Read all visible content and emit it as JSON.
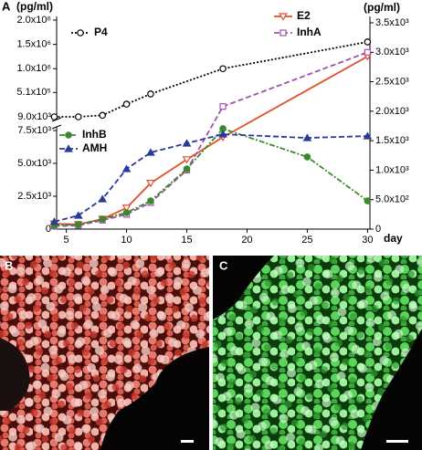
{
  "chart_data": {
    "type": "line",
    "panel_label": "A",
    "ylabel": "(pg/ml)",
    "y2label": "(pg/ml)",
    "xlabel": "day",
    "xlim": [
      4.2,
      30.2
    ],
    "xticks": [
      5,
      10,
      15,
      20,
      25,
      30
    ],
    "ylim": [
      0,
      7500
    ],
    "yticks": [
      0,
      {
        "value": 2500,
        "label": "2.5x10³"
      },
      {
        "value": 5000,
        "label": "5.0x10³"
      },
      {
        "value": 7500,
        "label": "7.5x10³"
      }
    ],
    "y_upper_lim": [
      9000,
      2000000
    ],
    "y_upper_ticks": [
      {
        "value": 9000,
        "label": "9.0x10³"
      },
      {
        "value": 510000,
        "label": "5.1x10⁵"
      },
      {
        "value": 1000000,
        "label": "1.0x10⁶"
      },
      {
        "value": 1500000,
        "label": "1.5x10⁶"
      },
      {
        "value": 2000000,
        "label": "2.0x10⁶"
      }
    ],
    "y2lim": [
      0,
      3500
    ],
    "y2ticks": [
      0,
      {
        "value": 500,
        "label": "5.0x10²"
      },
      {
        "value": 1000,
        "label": "1.0x10³"
      },
      {
        "value": 1500,
        "label": "1.5x10³"
      },
      {
        "value": 2000,
        "label": "2.0x10³"
      },
      {
        "value": 2500,
        "label": "2.5x10³"
      },
      {
        "value": 3000,
        "label": "3.0x10³"
      },
      {
        "value": 3500,
        "label": "3.5x10³"
      }
    ],
    "series": [
      {
        "name": "P4",
        "color": "#000000",
        "axis": "y_upper",
        "dash": "2,2",
        "marker": "circle",
        "marker_filled": false,
        "x": [
          4,
          6,
          8,
          10,
          12,
          18,
          30
        ],
        "values": [
          9000,
          9000,
          40000,
          270000,
          480000,
          1000000,
          1550000
        ]
      },
      {
        "name": "E2",
        "color": "#e0502a",
        "axis": "y2",
        "dash": "none",
        "marker": "triangle-down",
        "marker_filled": false,
        "x": [
          4,
          6,
          8,
          10,
          12,
          15,
          18,
          30
        ],
        "values": [
          90,
          80,
          170,
          360,
          780,
          1180,
          1560,
          2930
        ]
      },
      {
        "name": "InhA",
        "color": "#a050b0",
        "axis": "y2",
        "dash": "6,3",
        "marker": "square",
        "marker_filled": false,
        "x": [
          4,
          6,
          8,
          10,
          12,
          15,
          18,
          30
        ],
        "values": [
          50,
          60,
          150,
          250,
          450,
          1000,
          2080,
          3000
        ]
      },
      {
        "name": "InhB",
        "color": "#3a8a2a",
        "axis": "y",
        "dash": "6,2,2,2",
        "marker": "circle",
        "marker_filled": true,
        "x": [
          4,
          6,
          8,
          10,
          12,
          15,
          18,
          25,
          30
        ],
        "values": [
          280,
          350,
          760,
          1250,
          2150,
          4580,
          7640,
          5490,
          2150
        ]
      },
      {
        "name": "AMH",
        "color": "#2a3a9a",
        "axis": "y",
        "dash": "6,3",
        "marker": "triangle-up",
        "marker_filled": true,
        "x": [
          4,
          6,
          8,
          10,
          12,
          15,
          18,
          25,
          30
        ],
        "values": [
          560,
          1040,
          2290,
          4580,
          5830,
          6530,
          7220,
          6940,
          7080
        ]
      }
    ]
  },
  "panels": [
    {
      "label": "B"
    },
    {
      "label": "C"
    }
  ]
}
